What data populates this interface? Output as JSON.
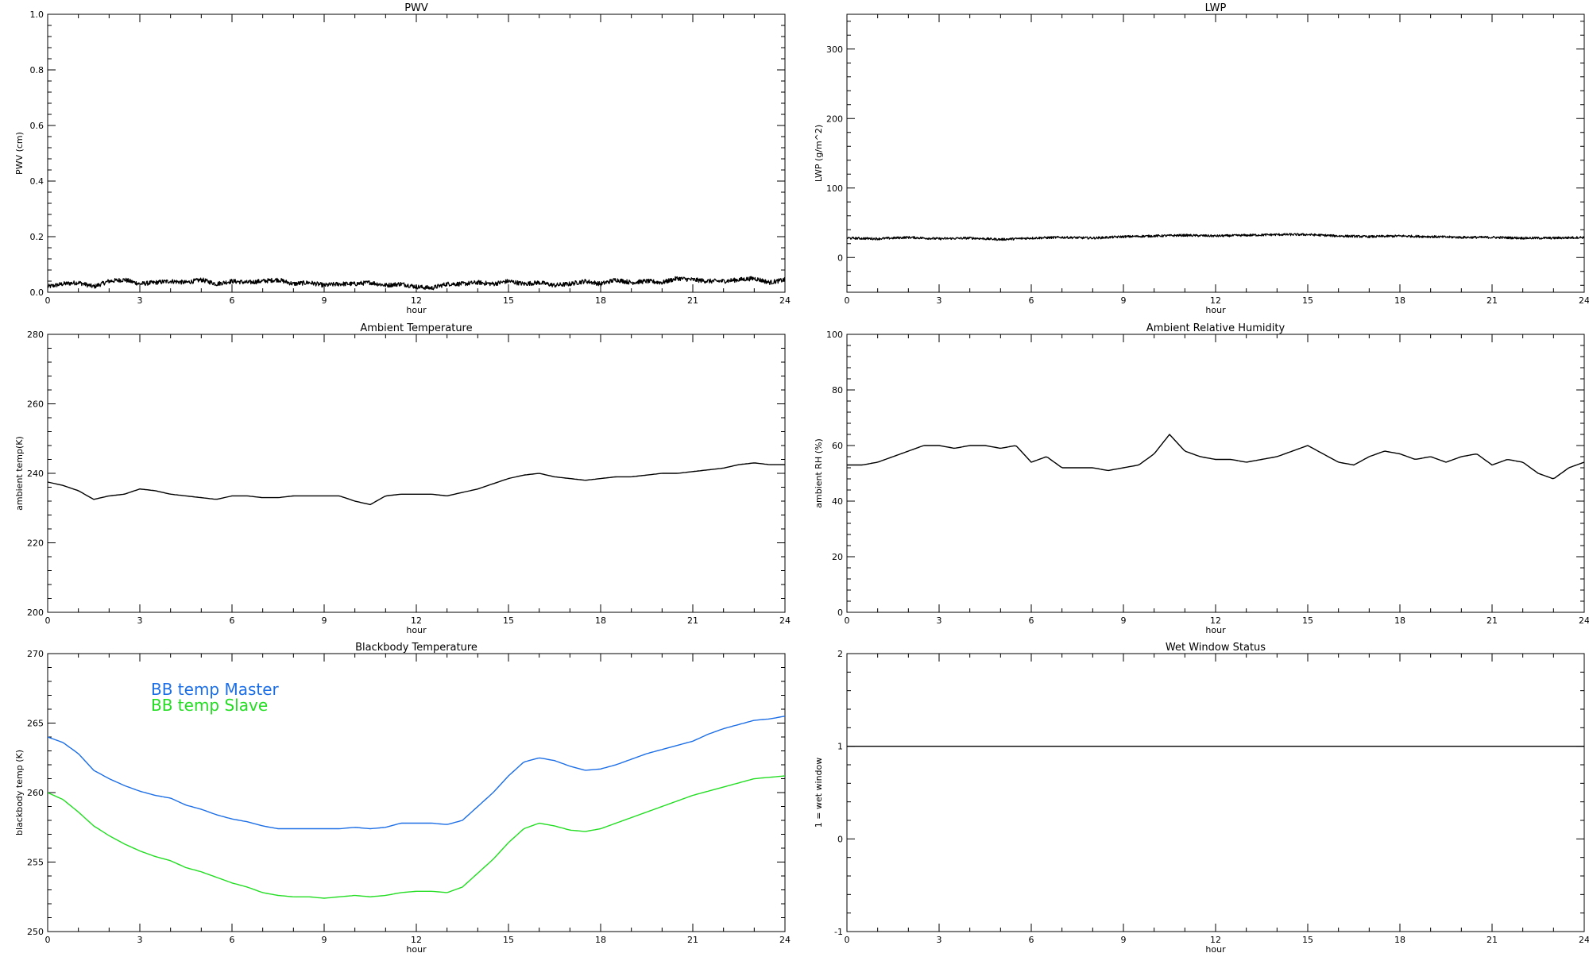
{
  "chart_data": [
    {
      "type": "line",
      "title": "PWV",
      "xlabel": "hour",
      "ylabel": "PWV (cm)",
      "xlim": [
        0,
        24
      ],
      "ylim": [
        0,
        1.0
      ],
      "xticks": [
        "0",
        "3",
        "6",
        "9",
        "12",
        "15",
        "18",
        "21",
        "24"
      ],
      "yticks": [
        "0.0",
        "0.2",
        "0.4",
        "0.6",
        "0.8",
        "1.0"
      ],
      "grid": false,
      "series": [
        {
          "color": "#000000",
          "noise": 0.008,
          "x": [
            0,
            0.5,
            1,
            1.5,
            2,
            2.5,
            3,
            3.5,
            4,
            4.5,
            5,
            5.5,
            6,
            6.5,
            7,
            7.5,
            8,
            8.5,
            9,
            9.5,
            10,
            10.5,
            11,
            11.5,
            12,
            12.5,
            13,
            13.5,
            14,
            14.5,
            15,
            15.5,
            16,
            16.5,
            17,
            17.5,
            18,
            18.5,
            19,
            19.5,
            20,
            20.5,
            21,
            21.5,
            22,
            22.5,
            23,
            23.5,
            24
          ],
          "y": [
            0.02,
            0.03,
            0.035,
            0.02,
            0.04,
            0.045,
            0.03,
            0.035,
            0.04,
            0.035,
            0.045,
            0.03,
            0.04,
            0.035,
            0.04,
            0.045,
            0.03,
            0.035,
            0.025,
            0.03,
            0.03,
            0.035,
            0.025,
            0.03,
            0.02,
            0.015,
            0.03,
            0.03,
            0.035,
            0.03,
            0.04,
            0.03,
            0.035,
            0.025,
            0.03,
            0.04,
            0.03,
            0.045,
            0.035,
            0.04,
            0.035,
            0.05,
            0.045,
            0.04,
            0.04,
            0.045,
            0.05,
            0.035,
            0.045
          ]
        }
      ]
    },
    {
      "type": "line",
      "title": "LWP",
      "xlabel": "hour",
      "ylabel": "LWP (g/m^2)",
      "xlim": [
        0,
        24
      ],
      "ylim": [
        -50,
        350
      ],
      "xticks": [
        "0",
        "3",
        "6",
        "9",
        "12",
        "15",
        "18",
        "21",
        "24"
      ],
      "yticks": [
        "0",
        "100",
        "200",
        "300"
      ],
      "grid": false,
      "series": [
        {
          "color": "#000000",
          "noise": 1.6,
          "x": [
            0,
            1,
            2,
            3,
            4,
            5,
            6,
            7,
            8,
            9,
            10,
            11,
            12,
            13,
            14,
            15,
            16,
            17,
            18,
            19,
            20,
            21,
            22,
            23,
            24
          ],
          "y": [
            28,
            27,
            29,
            27,
            28,
            26,
            28,
            29,
            28,
            30,
            31,
            32,
            31,
            32,
            33,
            33,
            31,
            30,
            31,
            30,
            29,
            29,
            28,
            28,
            29
          ]
        }
      ]
    },
    {
      "type": "line",
      "title": "Ambient Temperature",
      "xlabel": "hour",
      "ylabel": "ambient temp(K)",
      "xlim": [
        0,
        24
      ],
      "ylim": [
        200,
        280
      ],
      "xticks": [
        "0",
        "3",
        "6",
        "9",
        "12",
        "15",
        "18",
        "21",
        "24"
      ],
      "yticks": [
        "200",
        "220",
        "240",
        "260",
        "280"
      ],
      "grid": false,
      "series": [
        {
          "color": "#000000",
          "noise": 0,
          "x": [
            0,
            0.5,
            1,
            1.5,
            2,
            2.5,
            3,
            3.5,
            4,
            4.5,
            5,
            5.5,
            6,
            6.5,
            7,
            7.5,
            8,
            8.5,
            9,
            9.5,
            10,
            10.5,
            11,
            11.5,
            12,
            12.5,
            13,
            13.5,
            14,
            14.5,
            15,
            15.5,
            16,
            16.5,
            17,
            17.5,
            18,
            18.5,
            19,
            19.5,
            20,
            20.5,
            21,
            21.5,
            22,
            22.5,
            23,
            23.5,
            24
          ],
          "y": [
            237.5,
            236.5,
            235,
            232.5,
            233.5,
            234,
            235.5,
            235,
            234,
            233.5,
            233,
            232.5,
            233.5,
            233.5,
            233,
            233,
            233.5,
            233.5,
            233.5,
            233.5,
            232,
            231,
            233.5,
            234,
            234,
            234,
            233.5,
            234.5,
            235.5,
            237,
            238.5,
            239.5,
            240,
            239,
            238.5,
            238,
            238.5,
            239,
            239,
            239.5,
            240,
            240,
            240.5,
            241,
            241.5,
            242.5,
            243,
            242.5,
            242.5
          ]
        }
      ]
    },
    {
      "type": "line",
      "title": "Ambient Relative Humidity",
      "xlabel": "hour",
      "ylabel": "ambient RH (%)",
      "xlim": [
        0,
        24
      ],
      "ylim": [
        0,
        100
      ],
      "xticks": [
        "0",
        "3",
        "6",
        "9",
        "12",
        "15",
        "18",
        "21",
        "24"
      ],
      "yticks": [
        "0",
        "20",
        "40",
        "60",
        "80",
        "100"
      ],
      "grid": false,
      "series": [
        {
          "color": "#000000",
          "noise": 0,
          "x": [
            0,
            0.5,
            1,
            1.5,
            2,
            2.5,
            3,
            3.5,
            4,
            4.5,
            5,
            5.5,
            6,
            6.5,
            7,
            7.5,
            8,
            8.5,
            9,
            9.5,
            10,
            10.5,
            11,
            11.5,
            12,
            12.5,
            13,
            13.5,
            14,
            14.5,
            15,
            15.5,
            16,
            16.5,
            17,
            17.5,
            18,
            18.5,
            19,
            19.5,
            20,
            20.5,
            21,
            21.5,
            22,
            22.5,
            23,
            23.5,
            24
          ],
          "y": [
            53,
            53,
            54,
            56,
            58,
            60,
            60,
            59,
            60,
            60,
            59,
            60,
            54,
            56,
            52,
            52,
            52,
            51,
            52,
            53,
            57,
            64,
            58,
            56,
            55,
            55,
            54,
            55,
            56,
            58,
            60,
            57,
            54,
            53,
            56,
            58,
            57,
            55,
            56,
            54,
            56,
            57,
            53,
            55,
            54,
            50,
            48,
            52,
            54
          ]
        }
      ]
    },
    {
      "type": "line",
      "title": "Blackbody Temperature",
      "xlabel": "hour",
      "ylabel": "blackbody temp (K)",
      "xlim": [
        0,
        24
      ],
      "ylim": [
        250,
        270
      ],
      "xticks": [
        "0",
        "3",
        "6",
        "9",
        "12",
        "15",
        "18",
        "21",
        "24"
      ],
      "yticks": [
        "250",
        "255",
        "260",
        "265",
        "270"
      ],
      "grid": false,
      "legend": "top-left",
      "series": [
        {
          "name": "BB temp Master",
          "color": "#1c6ee6",
          "noise": 0,
          "x": [
            0,
            0.5,
            1,
            1.5,
            2,
            2.5,
            3,
            3.5,
            4,
            4.5,
            5,
            5.5,
            6,
            6.5,
            7,
            7.5,
            8,
            8.5,
            9,
            9.5,
            10,
            10.5,
            11,
            11.5,
            12,
            12.5,
            13,
            13.5,
            14,
            14.5,
            15,
            15.5,
            16,
            16.5,
            17,
            17.5,
            18,
            18.5,
            19,
            19.5,
            20,
            20.5,
            21,
            21.5,
            22,
            22.5,
            23,
            23.5,
            24
          ],
          "y": [
            264,
            263.6,
            262.8,
            261.6,
            261,
            260.5,
            260.1,
            259.8,
            259.6,
            259.1,
            258.8,
            258.4,
            258.1,
            257.9,
            257.6,
            257.4,
            257.4,
            257.4,
            257.4,
            257.4,
            257.5,
            257.4,
            257.5,
            257.8,
            257.8,
            257.8,
            257.7,
            258,
            259,
            260,
            261.2,
            262.2,
            262.5,
            262.3,
            261.9,
            261.6,
            261.7,
            262,
            262.4,
            262.8,
            263.1,
            263.4,
            263.7,
            264.2,
            264.6,
            264.9,
            265.2,
            265.3,
            265.5
          ]
        },
        {
          "name": "BB temp Slave",
          "color": "#22dd22",
          "noise": 0,
          "x": [
            0,
            0.5,
            1,
            1.5,
            2,
            2.5,
            3,
            3.5,
            4,
            4.5,
            5,
            5.5,
            6,
            6.5,
            7,
            7.5,
            8,
            8.5,
            9,
            9.5,
            10,
            10.5,
            11,
            11.5,
            12,
            12.5,
            13,
            13.5,
            14,
            14.5,
            15,
            15.5,
            16,
            16.5,
            17,
            17.5,
            18,
            18.5,
            19,
            19.5,
            20,
            20.5,
            21,
            21.5,
            22,
            22.5,
            23,
            23.5,
            24
          ],
          "y": [
            260,
            259.5,
            258.6,
            257.6,
            256.9,
            256.3,
            255.8,
            255.4,
            255.1,
            254.6,
            254.3,
            253.9,
            253.5,
            253.2,
            252.8,
            252.6,
            252.5,
            252.5,
            252.4,
            252.5,
            252.6,
            252.5,
            252.6,
            252.8,
            252.9,
            252.9,
            252.8,
            253.2,
            254.2,
            255.2,
            256.4,
            257.4,
            257.8,
            257.6,
            257.3,
            257.2,
            257.4,
            257.8,
            258.2,
            258.6,
            259,
            259.4,
            259.8,
            260.1,
            260.4,
            260.7,
            261,
            261.1,
            261.2
          ]
        }
      ]
    },
    {
      "type": "line",
      "title": "Wet Window Status",
      "xlabel": "hour",
      "ylabel": "1 = wet window",
      "xlim": [
        0,
        24
      ],
      "ylim": [
        -1,
        2
      ],
      "xticks": [
        "0",
        "3",
        "6",
        "9",
        "12",
        "15",
        "18",
        "21",
        "24"
      ],
      "yticks": [
        "-1",
        "0",
        "1",
        "2"
      ],
      "grid": false,
      "series": [
        {
          "color": "#000000",
          "noise": 0,
          "x": [
            0,
            24
          ],
          "y": [
            1,
            1
          ]
        }
      ]
    }
  ]
}
